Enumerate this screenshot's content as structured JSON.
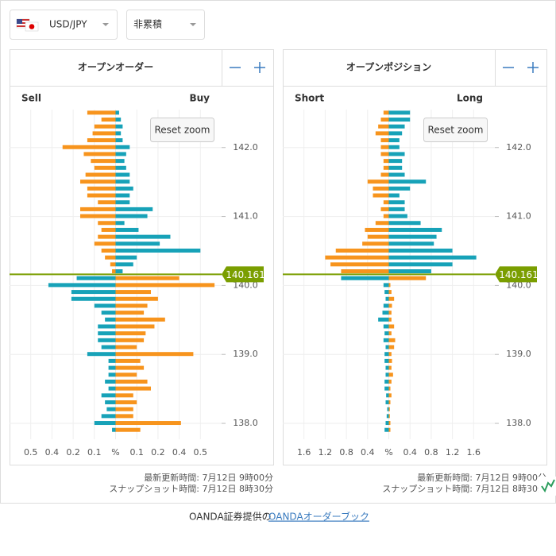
{
  "header": {
    "pair": "USD/JPY",
    "mode": "非累積"
  },
  "chart_data": [
    {
      "type": "bar",
      "title": "オープンオーダー",
      "left_label": "Sell",
      "right_label": "Buy",
      "reset": "Reset zoom",
      "y": [
        142.5,
        142.4,
        142.3,
        142.2,
        142.1,
        142.0,
        141.9,
        141.8,
        141.7,
        141.6,
        141.5,
        141.4,
        141.3,
        141.2,
        141.1,
        141.0,
        140.9,
        140.8,
        140.7,
        140.6,
        140.5,
        140.4,
        140.3,
        140.2,
        140.1,
        140.0,
        139.9,
        139.8,
        139.7,
        139.6,
        139.5,
        139.4,
        139.3,
        139.2,
        139.1,
        139.0,
        138.9,
        138.8,
        138.7,
        138.6,
        138.5,
        138.4,
        138.3,
        138.2,
        138.1,
        138.0,
        137.9
      ],
      "series": [
        {
          "color": "#f7941d",
          "values": [
            0.16,
            0.08,
            0.12,
            0.13,
            0.16,
            0.3,
            0.18,
            0.14,
            0.12,
            0.17,
            0.2,
            0.16,
            0.16,
            0.1,
            0.2,
            0.2,
            0.1,
            0.08,
            0.1,
            0.12,
            0.08,
            0.06,
            0.03,
            0.02,
            0.36,
            0.56,
            0.2,
            0.24,
            0.18,
            0.16,
            0.28,
            0.22,
            0.17,
            0.16,
            0.12,
            0.44,
            0.14,
            0.16,
            0.12,
            0.18,
            0.2,
            0.1,
            0.12,
            0.1,
            0.1,
            0.37,
            0.14
          ]
        },
        {
          "color": "#17a2b8",
          "values": [
            0.02,
            0.03,
            0.04,
            0.03,
            0.04,
            0.08,
            0.06,
            0.05,
            0.06,
            0.08,
            0.08,
            0.1,
            0.08,
            0.08,
            0.21,
            0.18,
            0.05,
            0.13,
            0.31,
            0.25,
            0.48,
            0.12,
            0.1,
            0.04,
            0.22,
            0.38,
            0.25,
            0.25,
            0.12,
            0.08,
            0.06,
            0.1,
            0.1,
            0.1,
            0.08,
            0.16,
            0.04,
            0.04,
            0.04,
            0.06,
            0.04,
            0.08,
            0.06,
            0.05,
            0.08,
            0.12,
            0.02
          ]
        }
      ],
      "current_price": 140.161,
      "ylim": [
        137.77,
        142.55
      ],
      "yticks": [
        {
          "value": 142,
          "label": "142.0"
        },
        {
          "value": 141,
          "label": "141.0"
        },
        {
          "value": 140,
          "label": "140.0"
        },
        {
          "value": 139,
          "label": "139.0"
        },
        {
          "value": 138,
          "label": "138.0"
        }
      ],
      "xlim": [
        -0.6,
        0.6
      ],
      "xticks": [
        {
          "value": -0.48,
          "label": "0.5"
        },
        {
          "value": -0.36,
          "label": "0.4"
        },
        {
          "value": -0.24,
          "label": "0.2"
        },
        {
          "value": -0.12,
          "label": "0.1"
        },
        {
          "value": 0,
          "label": "%"
        },
        {
          "value": 0.12,
          "label": "0.1"
        },
        {
          "value": 0.24,
          "label": "0.2"
        },
        {
          "value": 0.36,
          "label": "0.4"
        },
        {
          "value": 0.48,
          "label": "0.5"
        }
      ],
      "grid": true,
      "updated": "最新更新時間: 7月12日 9時00分",
      "snapshot": "スナップショット時間: 7月12日 8時30分"
    },
    {
      "type": "bar",
      "title": "オープンポジション",
      "left_label": "Short",
      "right_label": "Long",
      "reset": "Reset zoom",
      "y": [
        142.5,
        142.4,
        142.3,
        142.2,
        142.1,
        142.0,
        141.9,
        141.8,
        141.7,
        141.6,
        141.5,
        141.4,
        141.3,
        141.2,
        141.1,
        141.0,
        140.9,
        140.8,
        140.7,
        140.6,
        140.5,
        140.4,
        140.3,
        140.2,
        140.1,
        140.0,
        139.9,
        139.8,
        139.7,
        139.6,
        139.5,
        139.4,
        139.3,
        139.2,
        139.1,
        139.0,
        138.9,
        138.8,
        138.7,
        138.6,
        138.5,
        138.4,
        138.3,
        138.2,
        138.1,
        138.0,
        137.9
      ],
      "series": [
        {
          "color": "#f7941d",
          "values": [
            0.1,
            0.15,
            0.2,
            0.25,
            0.15,
            0.15,
            0.15,
            0.1,
            0.1,
            0.15,
            0.4,
            0.3,
            0.3,
            0.1,
            0.15,
            0.1,
            0.25,
            0.45,
            0.4,
            0.5,
            1.0,
            1.2,
            1.1,
            0.9,
            0.7,
            0.03,
            0.05,
            0.1,
            0.06,
            0.05,
            0.05,
            0.1,
            0.05,
            0.12,
            0.1,
            0.05,
            0.06,
            0.05,
            0.08,
            0.05,
            0.03,
            0.05,
            0.03,
            0.02,
            0.02,
            0.03,
            0.03
          ]
        },
        {
          "color": "#17a2b8",
          "values": [
            0.4,
            0.4,
            0.3,
            0.25,
            0.2,
            0.2,
            0.3,
            0.25,
            0.25,
            0.3,
            0.7,
            0.4,
            0.2,
            0.3,
            0.3,
            0.35,
            0.6,
            1.0,
            0.9,
            0.85,
            1.2,
            1.65,
            1.2,
            0.8,
            0.9,
            0.1,
            0.08,
            0.06,
            0.1,
            0.12,
            0.2,
            0.1,
            0.08,
            0.1,
            0.06,
            0.08,
            0.08,
            0.06,
            0.06,
            0.08,
            0.08,
            0.05,
            0.06,
            0.03,
            0.04,
            0.06,
            0.08
          ]
        }
      ],
      "current_price": 140.161,
      "ylim": [
        137.77,
        142.55
      ],
      "yticks": [
        {
          "value": 142,
          "label": "142.0"
        },
        {
          "value": 141,
          "label": "141.0"
        },
        {
          "value": 140,
          "label": "140.0"
        },
        {
          "value": 139,
          "label": "139.0"
        },
        {
          "value": 138,
          "label": "138.0"
        }
      ],
      "xlim": [
        -2.0,
        2.0
      ],
      "xticks": [
        {
          "value": -1.6,
          "label": "1.6"
        },
        {
          "value": -1.2,
          "label": "1.2"
        },
        {
          "value": -0.8,
          "label": "0.8"
        },
        {
          "value": -0.4,
          "label": "0.4"
        },
        {
          "value": 0,
          "label": "%"
        },
        {
          "value": 0.4,
          "label": "0.4"
        },
        {
          "value": 0.8,
          "label": "0.8"
        },
        {
          "value": 1.2,
          "label": "1.2"
        },
        {
          "value": 1.6,
          "label": "1.6"
        }
      ],
      "grid": true,
      "updated": "最新更新時間: 7月12日 9時00分",
      "snapshot": "スナップショット時間: 7月12日 8時30分"
    }
  ],
  "footer": {
    "text": "OANDA証券提供の",
    "link": "OANDAオーダーブック"
  }
}
